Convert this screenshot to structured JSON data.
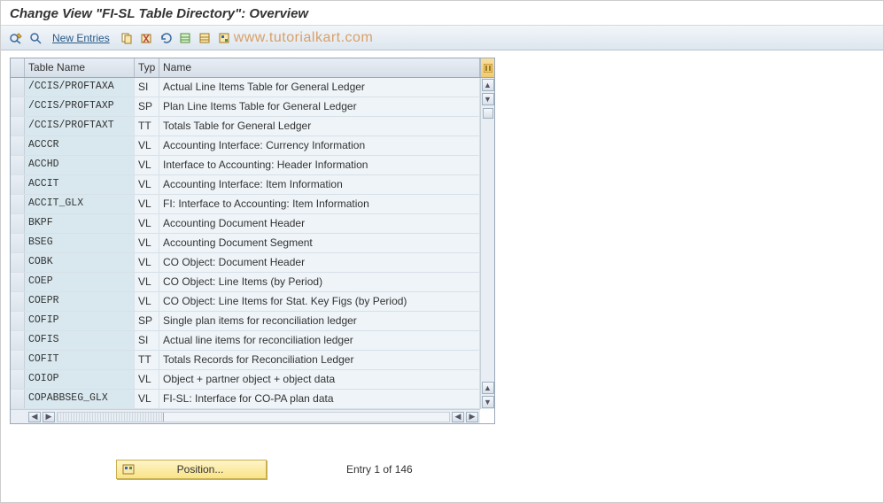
{
  "title": "Change View \"FI-SL Table Directory\": Overview",
  "toolbar": {
    "new_entries": "New Entries"
  },
  "watermark": "www.tutorialkart.com",
  "grid": {
    "headers": {
      "table_name": "Table Name",
      "typ": "Typ",
      "name": "Name"
    },
    "rows": [
      {
        "t": "/CCIS/PROFTAXA",
        "y": "SI",
        "n": "Actual Line Items Table for General Ledger"
      },
      {
        "t": "/CCIS/PROFTAXP",
        "y": "SP",
        "n": "Plan Line Items Table for General Ledger"
      },
      {
        "t": "/CCIS/PROFTAXT",
        "y": "TT",
        "n": "Totals Table for General Ledger"
      },
      {
        "t": "ACCCR",
        "y": "VL",
        "n": "Accounting Interface: Currency Information"
      },
      {
        "t": "ACCHD",
        "y": "VL",
        "n": "Interface to Accounting: Header Information"
      },
      {
        "t": "ACCIT",
        "y": "VL",
        "n": "Accounting Interface: Item Information"
      },
      {
        "t": "ACCIT_GLX",
        "y": "VL",
        "n": "FI: Interface to Accounting: Item Information"
      },
      {
        "t": "BKPF",
        "y": "VL",
        "n": "Accounting Document Header"
      },
      {
        "t": "BSEG",
        "y": "VL",
        "n": "Accounting Document Segment"
      },
      {
        "t": "COBK",
        "y": "VL",
        "n": "CO Object: Document Header"
      },
      {
        "t": "COEP",
        "y": "VL",
        "n": "CO Object: Line Items (by Period)"
      },
      {
        "t": "COEPR",
        "y": "VL",
        "n": "CO Object: Line Items for Stat. Key Figs (by Period)"
      },
      {
        "t": "COFIP",
        "y": "SP",
        "n": "Single plan items for reconciliation ledger"
      },
      {
        "t": "COFIS",
        "y": "SI",
        "n": "Actual line items for reconciliation ledger"
      },
      {
        "t": "COFIT",
        "y": "TT",
        "n": "Totals Records for Reconciliation Ledger"
      },
      {
        "t": "COIOP",
        "y": "VL",
        "n": "Object + partner object + object data"
      },
      {
        "t": "COPABBSEG_GLX",
        "y": "VL",
        "n": "FI-SL: Interface for CO-PA plan data"
      }
    ]
  },
  "footer": {
    "position_btn": "Position...",
    "entry_text": "Entry 1 of 146"
  }
}
